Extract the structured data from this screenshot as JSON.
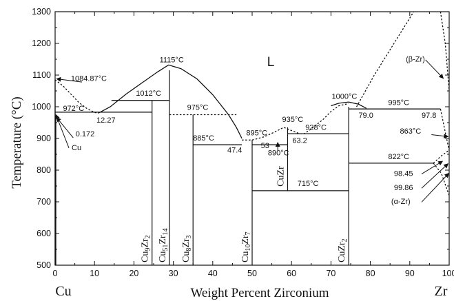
{
  "chart_data": {
    "type": "line",
    "title": "",
    "xlabel": "Weight Percent Zirconium",
    "ylabel": "Temperature (°C)",
    "xlim": [
      0,
      100
    ],
    "ylim": [
      500,
      1300
    ],
    "x_ticks": [
      "0",
      "10",
      "20",
      "30",
      "40",
      "50",
      "60",
      "70",
      "80",
      "90",
      "100"
    ],
    "y_ticks": [
      "500",
      "600",
      "700",
      "800",
      "900",
      "1000",
      "1100",
      "1200",
      "1300"
    ],
    "end_labels": {
      "left": "Cu",
      "right": "Zr"
    },
    "liquid_label": "L",
    "phases": [
      {
        "name": "Cu9Zr2",
        "base": "Cu",
        "sub1": "9",
        "mid": "Zr",
        "sub2": "2",
        "x": 24.6,
        "y_from": 500,
        "y_to": 1020
      },
      {
        "name": "Cu51Zr14",
        "base": "Cu",
        "sub1": "51",
        "mid": "Zr",
        "sub2": "14",
        "x": 29.0,
        "y_from": 500,
        "y_to": 1115
      },
      {
        "name": "Cu8Zr3",
        "base": "Cu",
        "sub1": "8",
        "mid": "Zr",
        "sub2": "3",
        "x": 35.0,
        "y_from": 500,
        "y_to": 975
      },
      {
        "name": "Cu10Zr7",
        "base": "Cu",
        "sub1": "10",
        "mid": "Zr",
        "sub2": "7",
        "x": 50.0,
        "y_from": 500,
        "y_to": 895
      },
      {
        "name": "CuZr",
        "base": "CuZr",
        "sub1": "",
        "mid": "",
        "sub2": "",
        "x": 59.0,
        "y_from": 735,
        "y_to": 935
      },
      {
        "name": "CuZr2",
        "base": "CuZr",
        "sub1": "",
        "mid": "",
        "sub2": "2",
        "x": 74.5,
        "y_from": 500,
        "y_to": 1000
      }
    ],
    "series": [
      {
        "style": "solid",
        "points": [
          [
            11.0,
            980
          ],
          [
            14.0,
            1000
          ],
          [
            18.0,
            1040
          ],
          [
            22.0,
            1075
          ],
          [
            26.0,
            1110
          ],
          [
            28.8,
            1132
          ],
          [
            32.0,
            1120
          ],
          [
            36.0,
            1088
          ],
          [
            40.0,
            1038
          ],
          [
            44.0,
            975
          ],
          [
            46.0,
            935
          ],
          [
            47.4,
            900
          ]
        ]
      },
      {
        "style": "dashed",
        "points": [
          [
            0,
            1085
          ],
          [
            2.0,
            1066
          ],
          [
            4.0,
            1040
          ],
          [
            6.0,
            1014
          ],
          [
            8.0,
            995
          ],
          [
            10.0,
            982
          ],
          [
            11.0,
            980
          ]
        ]
      },
      {
        "style": "solid",
        "points": [
          [
            0,
            1085
          ],
          [
            0,
            500
          ]
        ]
      },
      {
        "style": "solid",
        "points": [
          [
            0.172,
            972
          ],
          [
            0.172,
            500
          ]
        ]
      },
      {
        "style": "solid",
        "points": [
          [
            0,
            983
          ],
          [
            24.6,
            983
          ]
        ]
      },
      {
        "style": "solid",
        "points": [
          [
            14.3,
            1020
          ],
          [
            29.0,
            1020
          ]
        ]
      },
      {
        "style": "dashed",
        "points": [
          [
            29.0,
            975
          ],
          [
            46.0,
            975
          ]
        ]
      },
      {
        "style": "solid",
        "points": [
          [
            35.0,
            880
          ],
          [
            47.4,
            880
          ]
        ]
      },
      {
        "style": "solid",
        "points": [
          [
            50.0,
            880
          ],
          [
            59.0,
            880
          ]
        ]
      },
      {
        "style": "solid",
        "points": [
          [
            59.0,
            915
          ],
          [
            74.5,
            915
          ]
        ]
      },
      {
        "style": "solid",
        "points": [
          [
            50.0,
            735
          ],
          [
            74.5,
            735
          ]
        ]
      },
      {
        "style": "solid",
        "points": [
          [
            74.5,
            822
          ],
          [
            96.0,
            822
          ]
        ]
      },
      {
        "style": "solid",
        "points": [
          [
            74.5,
            993
          ],
          [
            97.8,
            993
          ]
        ]
      },
      {
        "style": "dashed",
        "points": [
          [
            47.4,
            895
          ],
          [
            49.0,
            895
          ],
          [
            50.0,
            895
          ],
          [
            53.0,
            905
          ],
          [
            56.0,
            922
          ],
          [
            58.0,
            935
          ],
          [
            60.0,
            925
          ],
          [
            62.0,
            915
          ],
          [
            63.2,
            915
          ],
          [
            65.0,
            930
          ],
          [
            68.0,
            960
          ],
          [
            70.0,
            985
          ],
          [
            72.0,
            1003
          ],
          [
            74.5,
            1010
          ]
        ]
      },
      {
        "style": "solid",
        "points": [
          [
            70.0,
            1003
          ],
          [
            72.0,
            1011
          ],
          [
            74.5,
            1015
          ],
          [
            77.0,
            1008
          ],
          [
            79.0,
            995
          ]
        ]
      },
      {
        "style": "dashed",
        "points": [
          [
            76.5,
            1000
          ],
          [
            81.0,
            1100
          ],
          [
            86.0,
            1200
          ],
          [
            91.0,
            1300
          ]
        ]
      },
      {
        "style": "dashed",
        "points": [
          [
            97.8,
            993
          ],
          [
            99.0,
            920
          ],
          [
            100.0,
            862
          ]
        ]
      },
      {
        "style": "dashed",
        "points": [
          [
            97.8,
            1300
          ],
          [
            99.0,
            1200
          ],
          [
            100.0,
            1050
          ]
        ]
      },
      {
        "style": "dashed",
        "points": [
          [
            96.0,
            822
          ],
          [
            98.0,
            845
          ],
          [
            100.0,
            863
          ]
        ]
      },
      {
        "style": "dashed",
        "points": [
          [
            96.0,
            822
          ],
          [
            98.0,
            790
          ],
          [
            100.0,
            720
          ]
        ]
      }
    ],
    "annotations": [
      {
        "text": "1115°C",
        "x": 26.5,
        "y": 1140
      },
      {
        "text": "1084.87°C",
        "x": 4.0,
        "y": 1081
      },
      {
        "text": "1012°C",
        "x": 20.5,
        "y": 1035
      },
      {
        "text": "972°C",
        "x": 2.0,
        "y": 987
      },
      {
        "text": "975°C",
        "x": 33.5,
        "y": 990
      },
      {
        "text": "12.27",
        "x": 10.5,
        "y": 950
      },
      {
        "text": "0.172",
        "x": 5.2,
        "y": 907
      },
      {
        "text": "Cu",
        "x": 4.2,
        "y": 863
      },
      {
        "text": "885°C",
        "x": 35.0,
        "y": 893
      },
      {
        "text": "47.4",
        "x": 43.7,
        "y": 855
      },
      {
        "text": "895°C",
        "x": 48.5,
        "y": 910
      },
      {
        "text": "53",
        "x": 52.2,
        "y": 870
      },
      {
        "text": "890°C",
        "x": 54.0,
        "y": 847
      },
      {
        "text": "935°C",
        "x": 57.6,
        "y": 952
      },
      {
        "text": "928°C",
        "x": 63.5,
        "y": 927
      },
      {
        "text": "63.2",
        "x": 60.2,
        "y": 886
      },
      {
        "text": "715°C",
        "x": 61.5,
        "y": 750
      },
      {
        "text": "1000°C",
        "x": 70.2,
        "y": 1025
      },
      {
        "text": "79.0",
        "x": 77.0,
        "y": 965
      },
      {
        "text": "995°C",
        "x": 84.5,
        "y": 1005
      },
      {
        "text": "97.8",
        "x": 93.0,
        "y": 965
      },
      {
        "text": "822°C",
        "x": 84.5,
        "y": 835
      },
      {
        "text": "(β-Zr)",
        "x": 89.0,
        "y": 1142
      },
      {
        "text": "863°C",
        "x": 87.5,
        "y": 915
      },
      {
        "text": "98.45",
        "x": 86.0,
        "y": 782
      },
      {
        "text": "99.86",
        "x": 86.0,
        "y": 737
      },
      {
        "text": "(α-Zr)",
        "x": 85.3,
        "y": 694
      }
    ],
    "arrows": [
      {
        "from": [
          6.8,
          1078
        ],
        "to": [
          0.4,
          1088
        ]
      },
      {
        "from": [
          4.6,
          902
        ],
        "to": [
          0.4,
          966
        ]
      },
      {
        "from": [
          3.5,
          870
        ],
        "to": [
          0.2,
          975
        ]
      },
      {
        "from": [
          56.5,
          862
        ],
        "to": [
          56.5,
          887
        ]
      },
      {
        "from": [
          94.0,
          1148
        ],
        "to": [
          98.5,
          1090
        ]
      },
      {
        "from": [
          95.5,
          912
        ],
        "to": [
          99.7,
          906
        ]
      },
      {
        "from": [
          93.0,
          788
        ],
        "to": [
          98.3,
          828
        ]
      },
      {
        "from": [
          93.0,
          743
        ],
        "to": [
          99.7,
          820
        ]
      },
      {
        "from": [
          93.0,
          699
        ],
        "to": [
          99.9,
          790
        ]
      }
    ]
  }
}
